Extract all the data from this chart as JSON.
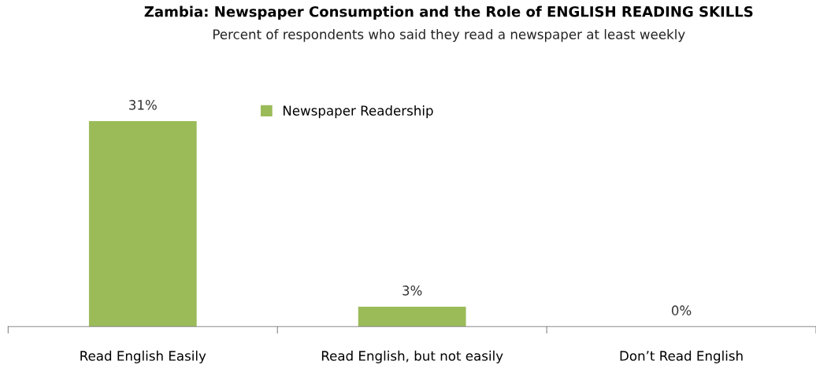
{
  "chart_data": {
    "type": "bar",
    "title": "Zambia: Newspaper Consumption and the Role of ENGLISH READING SKILLS",
    "subtitle": "Percent of respondents who said they read a newspaper at least weekly",
    "categories": [
      "Read English Easily",
      "Read English, but not easily",
      "Don’t Read English"
    ],
    "series": [
      {
        "name": "Newspaper Readership",
        "color": "#9bbb59",
        "values": [
          31,
          3,
          0
        ],
        "value_labels": [
          "31%",
          "3%",
          "0%"
        ]
      }
    ],
    "legend": "top",
    "grid": false
  }
}
